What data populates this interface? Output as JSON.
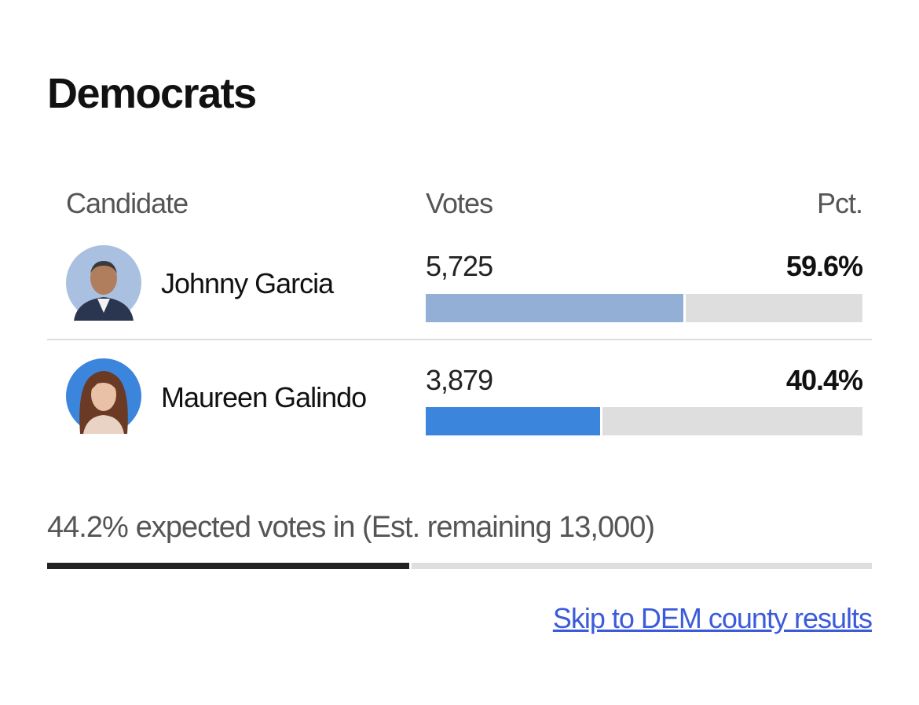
{
  "header": {
    "title": "Democrats"
  },
  "table": {
    "columns": [
      "Candidate",
      "Votes",
      "Pct."
    ],
    "rows": [
      {
        "name": "Johnny Garcia",
        "votes": "5,725",
        "pct": {
          "value": 59.6,
          "label": "59.6%"
        },
        "color": "#94afd6"
      },
      {
        "name": "Maureen Galindo",
        "votes": "3,879",
        "pct": {
          "value": 40.4,
          "label": "40.4%"
        },
        "color": "#3b86dc"
      }
    ]
  },
  "progress": {
    "expected_pct": {
      "value": 44.2,
      "label": "44.2%"
    },
    "text": "expected votes in (Est. remaining 13,000)"
  },
  "link": {
    "text": "Skip to DEM county results"
  }
}
